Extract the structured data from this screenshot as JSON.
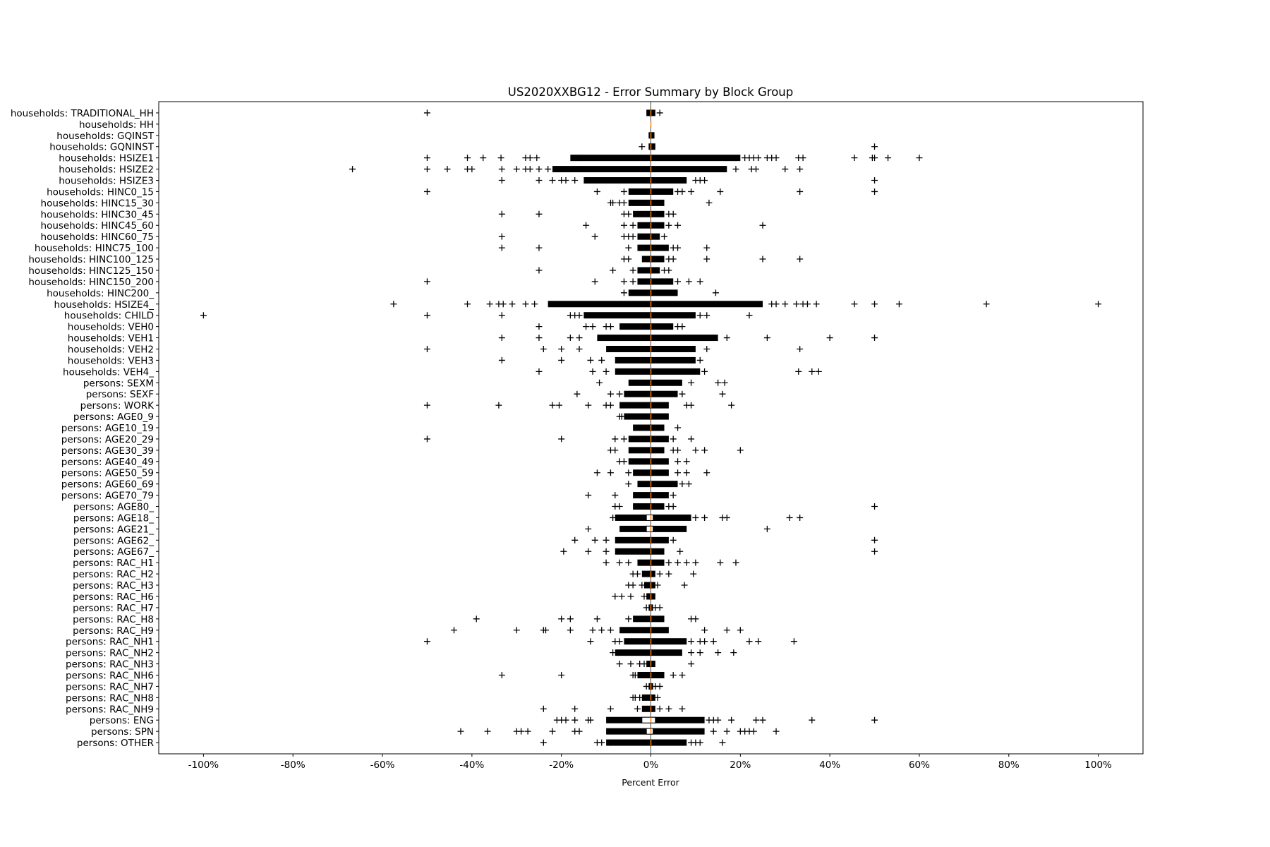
{
  "chart_data": {
    "type": "boxplot",
    "orientation": "horizontal",
    "title": "US2020XXBG12 - Error Summary by Block Group",
    "xlabel": "Percent Error",
    "ylabel": "",
    "xlim": [
      -110,
      110
    ],
    "xticks": [
      -100,
      -80,
      -60,
      -40,
      -20,
      0,
      20,
      40,
      60,
      80,
      100
    ],
    "xtick_labels": [
      "-100%",
      "-80%",
      "-60%",
      "-40%",
      "-20%",
      "0%",
      "20%",
      "40%",
      "60%",
      "80%",
      "100%"
    ],
    "grid": false,
    "reference_line_x": 0,
    "colors": {
      "median": "#ff7f0e",
      "box": "#000000",
      "flier": "#000000",
      "reference_line": "#444444"
    },
    "value_unit": "percent",
    "rows": [
      {
        "label": "households: TRADITIONAL_HH",
        "median": 0,
        "q1": 0,
        "q3": 0,
        "dense": [
          -1,
          1
        ],
        "fliers": [
          -50,
          2
        ]
      },
      {
        "label": "households: HH",
        "median": 0,
        "q1": 0,
        "q3": 0,
        "dense": null,
        "fliers": []
      },
      {
        "label": "households: GQINST",
        "median": 0,
        "q1": 0,
        "q3": 0,
        "dense": [
          -0.5,
          0.8
        ],
        "fliers": []
      },
      {
        "label": "households: GQNINST",
        "median": 0,
        "q1": 0,
        "q3": 0,
        "dense": [
          -0.5,
          1
        ],
        "fliers": [
          -2,
          50
        ]
      },
      {
        "label": "households: HSIZE1",
        "median": 0,
        "q1": 0,
        "q3": 0,
        "dense": [
          -18,
          20
        ],
        "fliers": [
          -50,
          -41,
          -37.5,
          -33.5,
          -28,
          -27,
          -25.5,
          -16,
          21,
          22,
          23,
          24,
          26,
          27,
          28,
          33,
          34,
          45.5,
          49.5,
          50,
          53,
          60
        ]
      },
      {
        "label": "households: HSIZE2",
        "median": 0,
        "q1": 0,
        "q3": 0,
        "dense": [
          -22,
          17
        ],
        "fliers": [
          -66.7,
          -50,
          -45.5,
          -41,
          -40,
          -33.3,
          -30,
          -28,
          -27,
          -25,
          -23,
          19,
          22.5,
          23.5,
          30,
          33.3
        ]
      },
      {
        "label": "households: HSIZE3",
        "median": 0,
        "q1": 0,
        "q3": 0,
        "dense": [
          -15,
          8
        ],
        "fliers": [
          -33.3,
          -25,
          -22,
          -20,
          -19,
          -17,
          10,
          11,
          12,
          50
        ]
      },
      {
        "label": "households: HINC0_15",
        "median": 0,
        "q1": 0,
        "q3": 0,
        "dense": [
          -5,
          5
        ],
        "fliers": [
          -50,
          -12,
          -6,
          6,
          7,
          9,
          15.5,
          33.3,
          50
        ]
      },
      {
        "label": "households: HINC15_30",
        "median": 0,
        "q1": 0,
        "q3": 0,
        "dense": [
          -5,
          3
        ],
        "fliers": [
          -9,
          -8.5,
          -7,
          -6,
          13
        ]
      },
      {
        "label": "households: HINC30_45",
        "median": 0,
        "q1": 0,
        "q3": 0,
        "dense": [
          -4,
          3
        ],
        "fliers": [
          -33.3,
          -25,
          -6,
          -5,
          4,
          5
        ]
      },
      {
        "label": "households: HINC45_60",
        "median": 0,
        "q1": 0,
        "q3": 0,
        "dense": [
          -3,
          3
        ],
        "fliers": [
          -14.5,
          -6,
          -4,
          4,
          6,
          25
        ]
      },
      {
        "label": "households: HINC60_75",
        "median": 0,
        "q1": 0,
        "q3": 0,
        "dense": [
          -3,
          2
        ],
        "fliers": [
          -33.3,
          -12.5,
          -6,
          -5,
          -4,
          3
        ]
      },
      {
        "label": "households: HINC75_100",
        "median": 0,
        "q1": 0,
        "q3": 0,
        "dense": [
          -3,
          4
        ],
        "fliers": [
          -33.3,
          -25,
          -5,
          5,
          6,
          12.5
        ]
      },
      {
        "label": "households: HINC100_125",
        "median": 0,
        "q1": 0,
        "q3": 0,
        "dense": [
          -2,
          3
        ],
        "fliers": [
          -6,
          -5,
          4,
          5,
          12.5,
          25,
          33.3
        ]
      },
      {
        "label": "households: HINC125_150",
        "median": 0,
        "q1": 0,
        "q3": 0,
        "dense": [
          -3,
          2
        ],
        "fliers": [
          -25,
          -8.5,
          -4,
          3,
          4
        ]
      },
      {
        "label": "households: HINC150_200",
        "median": 0,
        "q1": 0,
        "q3": 0,
        "dense": [
          -3,
          5
        ],
        "fliers": [
          -50,
          -12.5,
          -6,
          -4,
          6,
          8.5,
          11
        ]
      },
      {
        "label": "households: HINC200_",
        "median": 0,
        "q1": 0,
        "q3": 0,
        "dense": [
          -5,
          6
        ],
        "fliers": [
          -6,
          14.5
        ]
      },
      {
        "label": "households: HSIZE4_",
        "median": 0,
        "q1": 0,
        "q3": 0,
        "dense": [
          -23,
          25
        ],
        "fliers": [
          -57.5,
          -41,
          -36,
          -34,
          -33,
          -31,
          -28,
          -26,
          27,
          28,
          30,
          32.5,
          34,
          35,
          37,
          45.5,
          50,
          55.5,
          75,
          100
        ]
      },
      {
        "label": "households: CHILD",
        "median": 0,
        "q1": 0,
        "q3": 0,
        "dense": [
          -15,
          10
        ],
        "fliers": [
          -100,
          -50,
          -33.3,
          -18,
          -17,
          -16,
          11,
          12.5,
          22
        ]
      },
      {
        "label": "households: VEH0",
        "median": 0,
        "q1": 0,
        "q3": 0,
        "dense": [
          -7,
          5
        ],
        "fliers": [
          -25,
          -14.5,
          -13,
          -10,
          -9,
          6,
          7
        ]
      },
      {
        "label": "households: VEH1",
        "median": 0,
        "q1": 0,
        "q3": 0,
        "dense": [
          -12,
          15
        ],
        "fliers": [
          -33.3,
          -25,
          -18,
          -16,
          17,
          26,
          40,
          50
        ]
      },
      {
        "label": "households: VEH2",
        "median": 0,
        "q1": 0,
        "q3": 0,
        "dense": [
          -10,
          10
        ],
        "fliers": [
          -50,
          -24,
          -20,
          -16,
          12.5,
          33.3
        ]
      },
      {
        "label": "households: VEH3",
        "median": 0,
        "q1": 0,
        "q3": 0,
        "dense": [
          -8,
          10
        ],
        "fliers": [
          -33.3,
          -20,
          -13.5,
          -11,
          11
        ]
      },
      {
        "label": "households: VEH4_",
        "median": 0,
        "q1": 0,
        "q3": 0,
        "dense": [
          -8,
          11
        ],
        "fliers": [
          -25,
          -13,
          -10,
          12,
          33,
          36,
          37.5
        ]
      },
      {
        "label": "persons: SEXM",
        "median": 0,
        "q1": 0,
        "q3": 0,
        "dense": [
          -5,
          7
        ],
        "fliers": [
          -11.5,
          9,
          15,
          16.5
        ]
      },
      {
        "label": "persons: SEXF",
        "median": 0,
        "q1": 0,
        "q3": 0,
        "dense": [
          -6,
          6
        ],
        "fliers": [
          -16.5,
          -9,
          -7,
          7,
          16
        ]
      },
      {
        "label": "persons: WORK",
        "median": 0,
        "q1": 0,
        "q3": 0,
        "dense": [
          -7,
          4
        ],
        "fliers": [
          -50,
          -34,
          -22,
          -20.5,
          -14,
          -10,
          -9,
          8,
          9,
          18
        ]
      },
      {
        "label": "persons: AGE0_9",
        "median": 0,
        "q1": 0,
        "q3": 0,
        "dense": [
          -6,
          4
        ],
        "fliers": [
          -7,
          -6.5
        ]
      },
      {
        "label": "persons: AGE10_19",
        "median": 0,
        "q1": 0,
        "q3": 0,
        "dense": [
          -4,
          3
        ],
        "fliers": [
          6
        ]
      },
      {
        "label": "persons: AGE20_29",
        "median": 0,
        "q1": 0,
        "q3": 0,
        "dense": [
          -5,
          4
        ],
        "fliers": [
          -50,
          -20,
          -8,
          -6,
          5,
          9
        ]
      },
      {
        "label": "persons: AGE30_39",
        "median": 0,
        "q1": 0,
        "q3": 0,
        "dense": [
          -5,
          3
        ],
        "fliers": [
          -9,
          -8,
          5,
          6,
          10,
          12,
          20
        ]
      },
      {
        "label": "persons: AGE40_49",
        "median": 0,
        "q1": 0,
        "q3": 0,
        "dense": [
          -5,
          4
        ],
        "fliers": [
          -7,
          -6,
          6,
          8
        ]
      },
      {
        "label": "persons: AGE50_59",
        "median": 0,
        "q1": 0,
        "q3": 0,
        "dense": [
          -4,
          4
        ],
        "fliers": [
          -12,
          -9,
          -5,
          6,
          8,
          12.5
        ]
      },
      {
        "label": "persons: AGE60_69",
        "median": 0,
        "q1": 0,
        "q3": 0,
        "dense": [
          -3,
          6
        ],
        "fliers": [
          -5,
          7,
          8.5
        ]
      },
      {
        "label": "persons: AGE70_79",
        "median": 0,
        "q1": 0,
        "q3": 0,
        "dense": [
          -4,
          4
        ],
        "fliers": [
          -14,
          -8,
          5
        ]
      },
      {
        "label": "persons: AGE80_",
        "median": 0,
        "q1": 0,
        "q3": 0,
        "dense": [
          -4,
          3
        ],
        "fliers": [
          -8,
          -7,
          4,
          5,
          50
        ]
      },
      {
        "label": "persons: AGE18_",
        "median": 0,
        "q1": -1,
        "q3": 0.5,
        "dense": [
          -8,
          9
        ],
        "fliers": [
          -8.5,
          10,
          12,
          16,
          17,
          31,
          33.3
        ]
      },
      {
        "label": "persons: AGE21_",
        "median": 0,
        "q1": -1,
        "q3": 0.5,
        "dense": [
          -7,
          8
        ],
        "fliers": [
          -14,
          26
        ]
      },
      {
        "label": "persons: AGE62_",
        "median": 0,
        "q1": 0,
        "q3": 0,
        "dense": [
          -8,
          4
        ],
        "fliers": [
          -17,
          -12.5,
          -10,
          5,
          50
        ]
      },
      {
        "label": "persons: AGE67_",
        "median": 0,
        "q1": 0,
        "q3": 0,
        "dense": [
          -8,
          3
        ],
        "fliers": [
          -19.5,
          -14,
          -10,
          6.5,
          50
        ]
      },
      {
        "label": "persons: RAC_H1",
        "median": 0,
        "q1": 0,
        "q3": 0,
        "dense": [
          -3,
          3
        ],
        "fliers": [
          -10,
          -7,
          -5,
          4,
          6,
          8,
          10,
          15.5,
          19
        ]
      },
      {
        "label": "persons: RAC_H2",
        "median": 0,
        "q1": 0,
        "q3": 0,
        "dense": [
          -2,
          1
        ],
        "fliers": [
          -4,
          -3,
          2,
          4,
          9.5
        ]
      },
      {
        "label": "persons: RAC_H3",
        "median": 0,
        "q1": 0,
        "q3": 0,
        "dense": [
          -1.5,
          1
        ],
        "fliers": [
          -5,
          -4,
          -2,
          1.5,
          7.5
        ]
      },
      {
        "label": "persons: RAC_H6",
        "median": 0,
        "q1": 0,
        "q3": 0,
        "dense": [
          -1,
          1
        ],
        "fliers": [
          -8,
          -6.5,
          -4.5,
          -1.5
        ]
      },
      {
        "label": "persons: RAC_H7",
        "median": 0,
        "q1": 0,
        "q3": 0,
        "dense": [
          -0.5,
          0.5
        ],
        "fliers": [
          -1,
          1,
          2
        ]
      },
      {
        "label": "persons: RAC_H8",
        "median": 0,
        "q1": 0,
        "q3": 0,
        "dense": [
          -4,
          3
        ],
        "fliers": [
          -39,
          -20,
          -18,
          -12,
          -5,
          9,
          10
        ]
      },
      {
        "label": "persons: RAC_H9",
        "median": 0,
        "q1": 0,
        "q3": 0,
        "dense": [
          -7,
          4
        ],
        "fliers": [
          -44,
          -30,
          -24,
          -23.5,
          -18,
          -13,
          -11,
          -9,
          12,
          17,
          20
        ]
      },
      {
        "label": "persons: RAC_NH1",
        "median": 0,
        "q1": 0,
        "q3": 0,
        "dense": [
          -6,
          8
        ],
        "fliers": [
          -50,
          -13.5,
          -8,
          -7,
          9,
          11,
          12,
          14,
          22,
          24,
          32
        ]
      },
      {
        "label": "persons: RAC_NH2",
        "median": 0,
        "q1": 0,
        "q3": 0,
        "dense": [
          -8,
          7
        ],
        "fliers": [
          -8.5,
          9,
          11,
          15,
          18.5
        ]
      },
      {
        "label": "persons: RAC_NH3",
        "median": 0,
        "q1": 0,
        "q3": 0,
        "dense": [
          -1,
          1
        ],
        "fliers": [
          -7,
          -4.5,
          -2.5,
          -1.5,
          9
        ]
      },
      {
        "label": "persons: RAC_NH6",
        "median": 0,
        "q1": 0,
        "q3": 0,
        "dense": [
          -3,
          3
        ],
        "fliers": [
          -33.3,
          -20,
          -4,
          -3.5,
          5,
          7
        ]
      },
      {
        "label": "persons: RAC_NH7",
        "median": 0,
        "q1": 0,
        "q3": 0,
        "dense": [
          -0.5,
          0.5
        ],
        "fliers": [
          -1,
          1,
          2
        ]
      },
      {
        "label": "persons: RAC_NH8",
        "median": 0,
        "q1": 0,
        "q3": 0,
        "dense": [
          -2,
          1
        ],
        "fliers": [
          -4,
          -3.5,
          -2.5,
          1.5
        ]
      },
      {
        "label": "persons: RAC_NH9",
        "median": 0,
        "q1": 0,
        "q3": 0,
        "dense": [
          -2,
          1
        ],
        "fliers": [
          -24,
          -17,
          -9,
          -3,
          2,
          4,
          7
        ]
      },
      {
        "label": "persons: ENG",
        "median": 0,
        "q1": -2,
        "q3": 1,
        "dense": [
          -10,
          12
        ],
        "fliers": [
          -21,
          -20,
          -19,
          -17,
          -14,
          -13.5,
          13,
          14,
          15,
          18,
          23.5,
          25,
          36,
          50
        ]
      },
      {
        "label": "persons: SPN",
        "median": 0,
        "q1": -1,
        "q3": 0.5,
        "dense": [
          -10,
          12
        ],
        "fliers": [
          -42.5,
          -36.5,
          -30,
          -29,
          -27.5,
          -22,
          -17,
          -16,
          14,
          17,
          20,
          21,
          22,
          23,
          28
        ]
      },
      {
        "label": "persons: OTHER",
        "median": 0,
        "q1": 0,
        "q3": 0,
        "dense": [
          -10,
          8
        ],
        "fliers": [
          -24,
          -12,
          -11,
          -9,
          9,
          10,
          11,
          16
        ]
      }
    ]
  }
}
